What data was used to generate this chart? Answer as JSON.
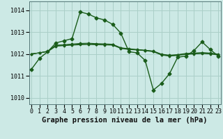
{
  "title": "Graphe pression niveau de la mer (hPa)",
  "bg_color": "#cce9e5",
  "line_color": "#1a5c1a",
  "grid_color": "#aacfc8",
  "ylim": [
    1009.7,
    1014.4
  ],
  "xlim": [
    -0.3,
    23.3
  ],
  "yticks": [
    1010,
    1011,
    1012,
    1013,
    1014
  ],
  "xticks": [
    0,
    1,
    2,
    3,
    4,
    5,
    6,
    7,
    8,
    9,
    10,
    11,
    12,
    13,
    14,
    15,
    16,
    17,
    18,
    19,
    20,
    21,
    22,
    23
  ],
  "series": [
    [
      1011.3,
      1011.8,
      1012.1,
      1012.5,
      1012.6,
      1012.7,
      1013.92,
      1013.82,
      1013.65,
      1013.55,
      1013.35,
      1012.95,
      1012.1,
      1012.05,
      1011.7,
      1010.35,
      1010.65,
      1011.1,
      1011.85,
      1011.9,
      1012.15,
      1012.55,
      1012.2,
      1011.9
    ],
    [
      1012.0,
      1012.05,
      1012.1,
      1012.35,
      1012.38,
      1012.4,
      1012.42,
      1012.43,
      1012.42,
      1012.41,
      1012.4,
      1012.25,
      1012.2,
      1012.18,
      1012.15,
      1012.1,
      1011.95,
      1011.9,
      1011.93,
      1011.98,
      1012.0,
      1012.02,
      1012.0,
      1011.95
    ],
    [
      1012.0,
      1012.05,
      1012.12,
      1012.38,
      1012.4,
      1012.43,
      1012.45,
      1012.46,
      1012.44,
      1012.43,
      1012.42,
      1012.27,
      1012.22,
      1012.19,
      1012.16,
      1012.12,
      1011.97,
      1011.92,
      1011.95,
      1012.0,
      1012.02,
      1012.04,
      1012.02,
      1011.97
    ],
    [
      1012.0,
      1012.05,
      1012.12,
      1012.4,
      1012.42,
      1012.45,
      1012.48,
      1012.49,
      1012.47,
      1012.46,
      1012.44,
      1012.28,
      1012.24,
      1012.2,
      1012.17,
      1012.13,
      1011.99,
      1011.94,
      1011.97,
      1012.02,
      1012.04,
      1012.06,
      1012.04,
      1011.99
    ]
  ],
  "title_fontsize": 7.5,
  "tick_fontsize": 6.0
}
